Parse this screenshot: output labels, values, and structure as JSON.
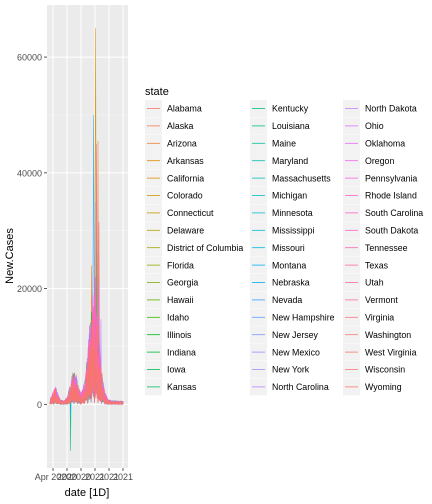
{
  "chart_data": {
    "type": "line",
    "title": "",
    "xlabel": "date [1D]",
    "ylabel": "New.Cases",
    "x_ticks": [
      "Apr 2020",
      "Jul 2020",
      "Oct 2020",
      "Jan 2021",
      "Apr 2021",
      "Jul 2021"
    ],
    "x_tick_text_rendered": [
      "Apr 2020",
      "2020",
      "2020",
      "2021",
      "2021",
      "2021"
    ],
    "y_ticks": [
      0,
      20000,
      40000,
      60000
    ],
    "y_tick_labels": [
      "0",
      "20000",
      "40000",
      "60000"
    ],
    "ylim": [
      -11000,
      69000
    ],
    "grid": true,
    "legend_title": "state",
    "legend_position": "right",
    "series": [
      {
        "name": "Alabama",
        "color": "#F8766D"
      },
      {
        "name": "Alaska",
        "color": "#F27D52"
      },
      {
        "name": "Arizona",
        "color": "#EA8331"
      },
      {
        "name": "Arkansas",
        "color": "#E18A00"
      },
      {
        "name": "California",
        "color": "#D89000"
      },
      {
        "name": "Colorado",
        "color": "#CD9600"
      },
      {
        "name": "Connecticut",
        "color": "#C19C00"
      },
      {
        "name": "Delaware",
        "color": "#B4A100"
      },
      {
        "name": "District of Columbia",
        "color": "#A3A500"
      },
      {
        "name": "Florida",
        "color": "#92AA00"
      },
      {
        "name": "Georgia",
        "color": "#7CAE00"
      },
      {
        "name": "Hawaii",
        "color": "#62B200"
      },
      {
        "name": "Idaho",
        "color": "#39B600"
      },
      {
        "name": "Illinois",
        "color": "#00B81F"
      },
      {
        "name": "Indiana",
        "color": "#00BA38"
      },
      {
        "name": "Iowa",
        "color": "#00BC4F"
      },
      {
        "name": "Kansas",
        "color": "#00BE67"
      },
      {
        "name": "Kentucky",
        "color": "#00BF7D"
      },
      {
        "name": "Louisiana",
        "color": "#00C08B"
      },
      {
        "name": "Maine",
        "color": "#00C19A"
      },
      {
        "name": "Maryland",
        "color": "#00C1A9"
      },
      {
        "name": "Massachusetts",
        "color": "#00C0B8"
      },
      {
        "name": "Michigan",
        "color": "#00BFC4"
      },
      {
        "name": "Minnesota",
        "color": "#00BDD0"
      },
      {
        "name": "Mississippi",
        "color": "#00BADE"
      },
      {
        "name": "Missouri",
        "color": "#00B6EB"
      },
      {
        "name": "Montana",
        "color": "#00B0F6"
      },
      {
        "name": "Nebraska",
        "color": "#00A9FF"
      },
      {
        "name": "Nevada",
        "color": "#35A2FF"
      },
      {
        "name": "New Hampshire",
        "color": "#619CFF"
      },
      {
        "name": "New Jersey",
        "color": "#7B95FF"
      },
      {
        "name": "New Mexico",
        "color": "#9590FF"
      },
      {
        "name": "New York",
        "color": "#AB8CF9"
      },
      {
        "name": "North Carolina",
        "color": "#BF80FF"
      },
      {
        "name": "North Dakota",
        "color": "#CF78FF"
      },
      {
        "name": "Ohio",
        "color": "#DC71FA"
      },
      {
        "name": "Oklahoma",
        "color": "#E76BF3"
      },
      {
        "name": "Oregon",
        "color": "#F066EA"
      },
      {
        "name": "Pennsylvania",
        "color": "#F763E0"
      },
      {
        "name": "Rhode Island",
        "color": "#FC61D5"
      },
      {
        "name": "South Carolina",
        "color": "#FF61C9"
      },
      {
        "name": "South Dakota",
        "color": "#FF62BC"
      },
      {
        "name": "Tennessee",
        "color": "#FF64B0"
      },
      {
        "name": "Texas",
        "color": "#FF67A4"
      },
      {
        "name": "Utah",
        "color": "#FF6A98"
      },
      {
        "name": "Vermont",
        "color": "#FB6F8C"
      },
      {
        "name": "Virginia",
        "color": "#F77580"
      },
      {
        "name": "Washington",
        "color": "#F47A74"
      },
      {
        "name": "West Virginia",
        "color": "#F27A6E"
      },
      {
        "name": "Wisconsin",
        "color": "#F5766F"
      },
      {
        "name": "Wyoming",
        "color": "#F8766D"
      }
    ],
    "notable_values": {
      "overall_peak": 65000,
      "overall_minimum": -8000,
      "typical_range": [
        0,
        13000
      ]
    }
  }
}
